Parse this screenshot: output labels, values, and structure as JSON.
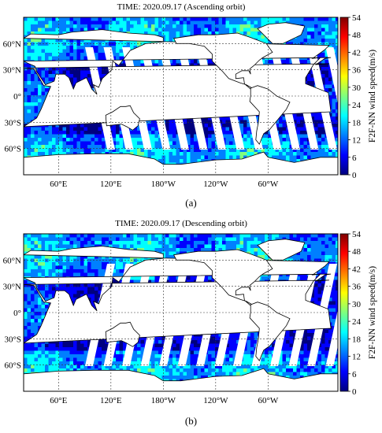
{
  "panels": [
    {
      "title": "TIME: 2020.09.17  (Ascending orbit)",
      "caption": "(a)",
      "orbit": "ascending",
      "colorbar": {
        "label": "F2F-NN wind speed(m/s)",
        "ticks": [
          "54",
          "48",
          "42",
          "36",
          "30",
          "24",
          "18",
          "12",
          "6",
          "0"
        ]
      },
      "lat_labels": [
        "60°N",
        "30°N",
        "0°",
        "30°S",
        "60°S"
      ],
      "lon_labels": [
        "60°E",
        "120°E",
        "180°W",
        "120°W",
        "60°W"
      ]
    },
    {
      "title": "TIME: 2020.09.17  (Descending orbit)",
      "caption": "(b)",
      "orbit": "descending",
      "colorbar": {
        "label": "F2F-NN wind speed(m/s)",
        "ticks": [
          "54",
          "48",
          "42",
          "36",
          "30",
          "24",
          "18",
          "12",
          "6",
          "0"
        ]
      },
      "lat_labels": [
        "60°N",
        "30°N",
        "0°",
        "30°S",
        "60°S"
      ],
      "lon_labels": [
        "60°E",
        "120°E",
        "180°W",
        "120°W",
        "60°W"
      ]
    }
  ],
  "colormap": [
    "#00007f",
    "#0000ff",
    "#007fff",
    "#00ffff",
    "#7fff7f",
    "#ffff00",
    "#ff7f00",
    "#ff0000",
    "#7f0000"
  ]
}
